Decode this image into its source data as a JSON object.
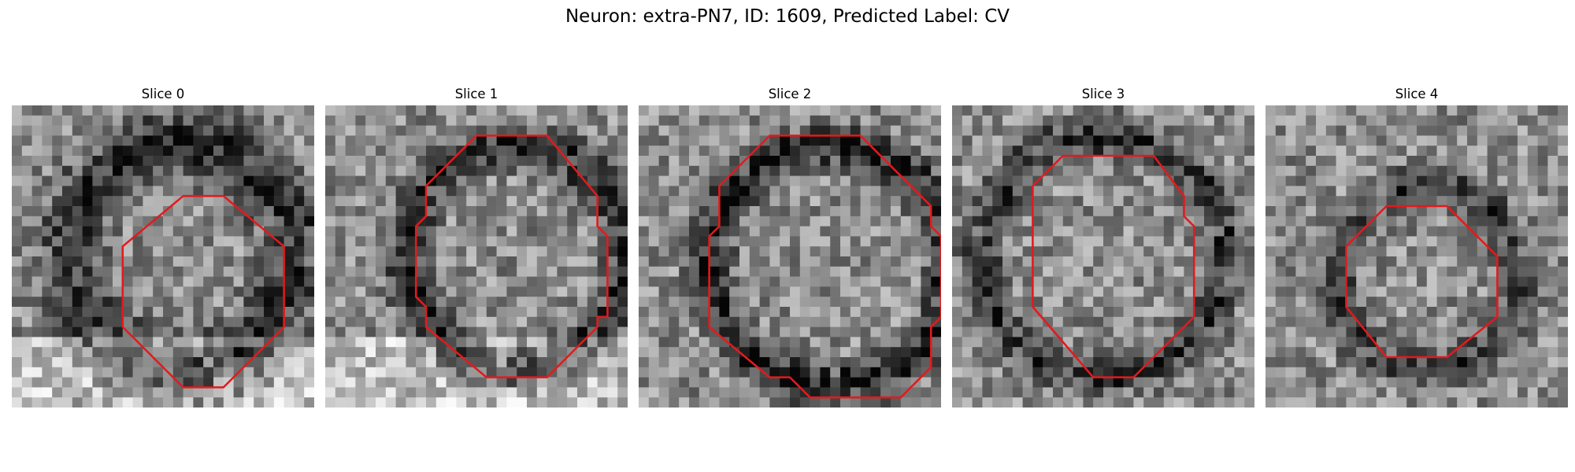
{
  "figure": {
    "title": "Neuron: extra-PN7, ID: 1609, Predicted Label: CV",
    "contour_color": "#e31a1c",
    "colormap": "gray"
  },
  "panels": [
    {
      "title": "Slice 0",
      "seed": 11,
      "contour": [
        [
          21,
          9
        ],
        [
          17,
          9
        ],
        [
          11,
          14
        ],
        [
          11,
          22
        ],
        [
          17,
          28
        ],
        [
          21,
          28
        ],
        [
          27,
          22
        ],
        [
          27,
          14
        ]
      ],
      "ring": {
        "cx": 17,
        "cy": 15,
        "r": 11,
        "w": 5,
        "dark": 0.45
      },
      "bright_bottom": true
    },
    {
      "title": "Slice 1",
      "seed": 23,
      "contour": [
        [
          22,
          3
        ],
        [
          15,
          3
        ],
        [
          10,
          8
        ],
        [
          10,
          11
        ],
        [
          9,
          12
        ],
        [
          9,
          19
        ],
        [
          10,
          20
        ],
        [
          10,
          22
        ],
        [
          16,
          27
        ],
        [
          22,
          27
        ],
        [
          27,
          22
        ],
        [
          27,
          21
        ],
        [
          28,
          21
        ],
        [
          28,
          13
        ],
        [
          27,
          12
        ],
        [
          27,
          9
        ]
      ],
      "ring": {
        "cx": 19,
        "cy": 15,
        "r": 11,
        "w": 3,
        "dark": 0.5
      },
      "bright_bottom": true
    },
    {
      "title": "Slice 2",
      "seed": 37,
      "contour": [
        [
          22,
          3
        ],
        [
          13,
          3
        ],
        [
          8,
          8
        ],
        [
          8,
          12
        ],
        [
          7,
          13
        ],
        [
          7,
          22
        ],
        [
          13,
          27
        ],
        [
          15,
          27
        ],
        [
          17,
          29
        ],
        [
          26,
          29
        ],
        [
          29,
          26
        ],
        [
          29,
          22
        ],
        [
          30,
          21
        ],
        [
          30,
          13
        ],
        [
          29,
          12
        ],
        [
          29,
          10
        ],
        [
          27,
          8
        ]
      ],
      "ring": {
        "cx": 19,
        "cy": 16,
        "r": 12,
        "w": 3,
        "dark": 0.55
      },
      "bright_bottom": false
    },
    {
      "title": "Slice 3",
      "seed": 51,
      "contour": [
        [
          20,
          5
        ],
        [
          11,
          5
        ],
        [
          8,
          8
        ],
        [
          8,
          20
        ],
        [
          14,
          27
        ],
        [
          18,
          27
        ],
        [
          20,
          25
        ],
        [
          24,
          21
        ],
        [
          24,
          12
        ],
        [
          23,
          11
        ],
        [
          23,
          9
        ]
      ],
      "ring": {
        "cx": 15,
        "cy": 15,
        "r": 12,
        "w": 3,
        "dark": 0.4
      },
      "bright_bottom": false
    },
    {
      "title": "Slice 4",
      "seed": 73,
      "contour": [
        [
          18,
          10
        ],
        [
          12,
          10
        ],
        [
          8,
          14
        ],
        [
          8,
          20
        ],
        [
          12,
          25
        ],
        [
          18,
          25
        ],
        [
          23,
          21
        ],
        [
          23,
          15
        ]
      ],
      "ring": {
        "cx": 16,
        "cy": 17,
        "r": 9,
        "w": 3,
        "dark": 0.35
      },
      "bright_bottom": false
    }
  ]
}
